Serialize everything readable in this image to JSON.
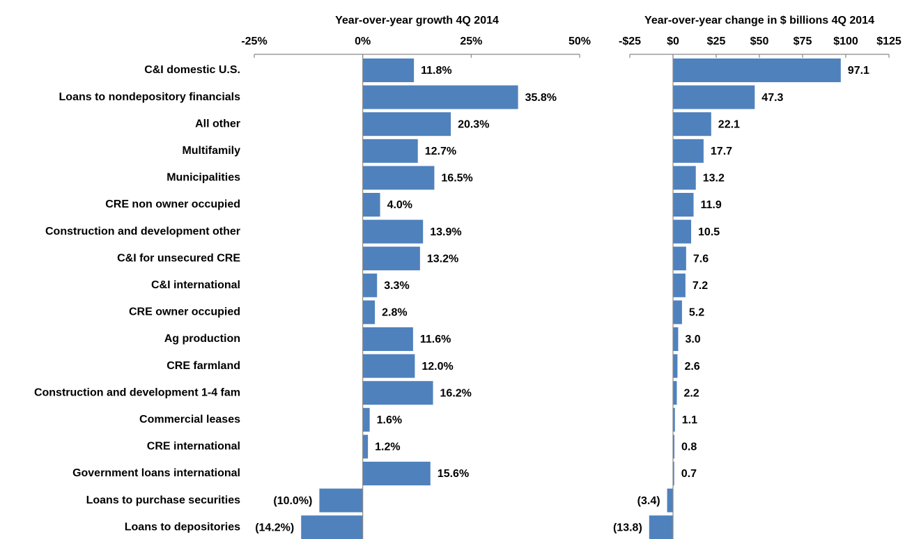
{
  "chart_data": [
    {
      "type": "bar",
      "orientation": "horizontal",
      "title": "Year-over-year growth 4Q 2014",
      "categories": [
        "C&I domestic U.S.",
        "Loans to nondepository financials",
        "All other",
        "Multifamily",
        "Municipalities",
        "CRE non owner occupied",
        "Construction and development other",
        "C&I for unsecured CRE",
        "C&I international",
        "CRE owner occupied",
        "Ag production",
        "CRE farmland",
        "Construction and development 1-4 fam",
        "Commercial leases",
        "CRE international",
        "Government loans international",
        "Loans to purchase securities",
        "Loans to depositories"
      ],
      "values": [
        11.8,
        35.8,
        20.3,
        12.7,
        16.5,
        4.0,
        13.9,
        13.2,
        3.3,
        2.8,
        11.6,
        12.0,
        16.2,
        1.6,
        1.2,
        15.6,
        -10.0,
        -14.2
      ],
      "value_labels": [
        "11.8%",
        "35.8%",
        "20.3%",
        "12.7%",
        "16.5%",
        "4.0%",
        "13.9%",
        "13.2%",
        "3.3%",
        "2.8%",
        "11.6%",
        "12.0%",
        "16.2%",
        "1.6%",
        "1.2%",
        "15.6%",
        "(10.0%)",
        "(14.2%)"
      ],
      "color": "#4f81bd",
      "xlim": [
        -25,
        50
      ],
      "xticks": [
        {
          "value": -25,
          "label": "-25%"
        },
        {
          "value": 0,
          "label": "0%"
        },
        {
          "value": 25,
          "label": "25%"
        },
        {
          "value": 50,
          "label": "50%"
        }
      ]
    },
    {
      "type": "bar",
      "orientation": "horizontal",
      "title": "Year-over-year change in $ billions 4Q 2014",
      "values": [
        97.1,
        47.3,
        22.1,
        17.7,
        13.2,
        11.9,
        10.5,
        7.6,
        7.2,
        5.2,
        3.0,
        2.6,
        2.2,
        1.1,
        0.8,
        0.7,
        -3.4,
        -13.8
      ],
      "value_labels": [
        "97.1",
        "47.3",
        "22.1",
        "17.7",
        "13.2",
        "11.9",
        "10.5",
        "7.6",
        "7.2",
        "5.2",
        "3.0",
        "2.6",
        "2.2",
        "1.1",
        "0.8",
        "0.7",
        "(3.4)",
        "(13.8)"
      ],
      "color": "#4f81bd",
      "xlim": [
        -25,
        125
      ],
      "xticks": [
        {
          "value": -25,
          "label": "-$25"
        },
        {
          "value": 0,
          "label": "$0"
        },
        {
          "value": 25,
          "label": "$25"
        },
        {
          "value": 50,
          "label": "$50"
        },
        {
          "value": 75,
          "label": "$75"
        },
        {
          "value": 100,
          "label": "$100"
        },
        {
          "value": 125,
          "label": "$125"
        }
      ]
    }
  ]
}
